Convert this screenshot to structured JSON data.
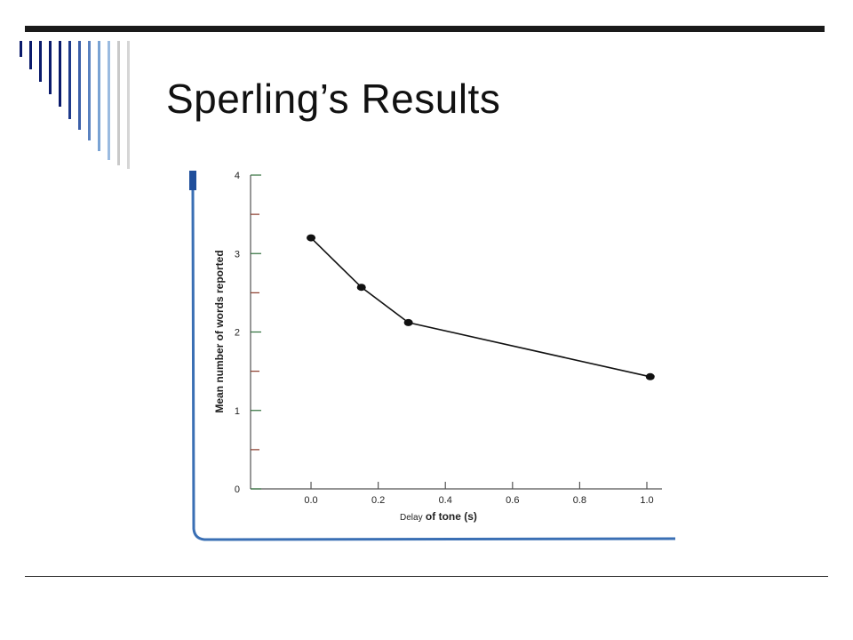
{
  "slide": {
    "title": "Sperling’s Results",
    "accent_colors": [
      "#0a1a6b",
      "#1e3a8a",
      "#3b5fa8",
      "#7aa3d4",
      "#c9c9c9"
    ]
  },
  "chart_data": {
    "type": "line",
    "title": "",
    "xlabel_prefix": "Delay",
    "xlabel_rest": " of tone (s)",
    "ylabel": "Mean number of words reported",
    "xlim": [
      -0.18,
      1.0
    ],
    "ylim": [
      0,
      4
    ],
    "x_ticks": [
      "0.0",
      "0.2",
      "0.4",
      "0.6",
      "0.8",
      "1.0"
    ],
    "y_ticks": [
      "0",
      "1",
      "2",
      "3",
      "4"
    ],
    "grid": false,
    "series": [
      {
        "x": [
          0.0,
          0.15,
          0.29,
          1.01
        ],
        "y": [
          3.2,
          2.57,
          2.12,
          1.43
        ]
      }
    ]
  }
}
